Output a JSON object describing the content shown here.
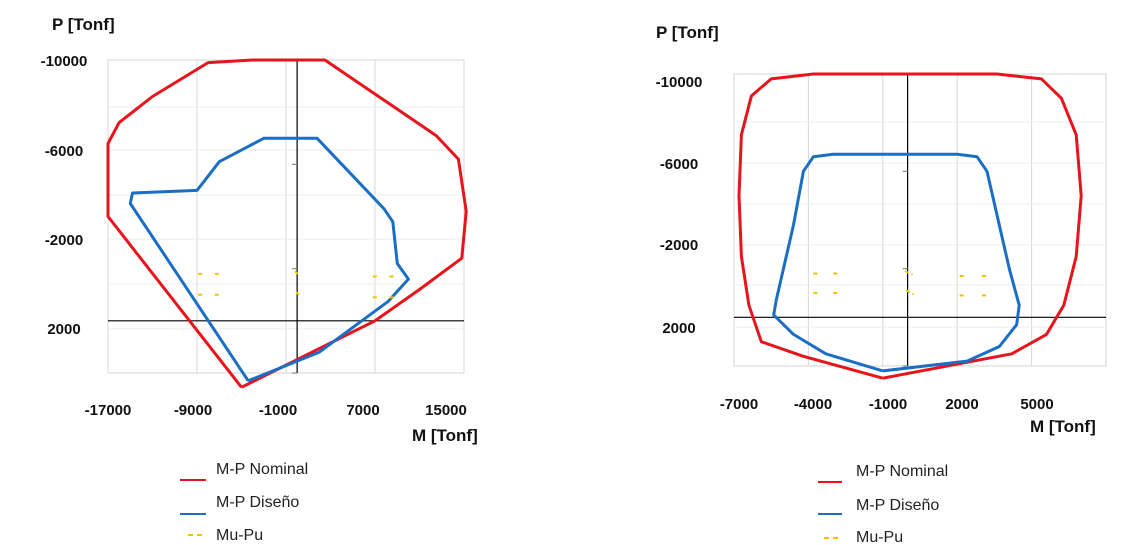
{
  "chart_data": [
    {
      "type": "line",
      "ylabel": "P [Tonf]",
      "xlabel": "M [Tonf]",
      "y_inverted": true,
      "grid": true,
      "legend_placement": "bottom",
      "xlim": [
        -17000,
        15000
      ],
      "ylim": [
        -10000,
        2000
      ],
      "x_ticks": [
        -17000,
        -9000,
        -1000,
        7000,
        15000
      ],
      "y_ticks": [
        -10000,
        -6000,
        -2000,
        2000
      ],
      "series": [
        {
          "name": "M-P Nominal",
          "color": "#e8141b",
          "style": "solid",
          "points": [
            [
              -5000,
              2550
            ],
            [
              -17000,
              -4000
            ],
            [
              -17000,
              -6800
            ],
            [
              -16000,
              -7600
            ],
            [
              -13000,
              -8600
            ],
            [
              -8000,
              -9900
            ],
            [
              -4000,
              -10000
            ],
            [
              2500,
              -10000
            ],
            [
              12500,
              -7100
            ],
            [
              14500,
              -6200
            ],
            [
              15200,
              -4200
            ],
            [
              14800,
              -2400
            ],
            [
              11000,
              -1200
            ],
            [
              7000,
              0
            ],
            [
              -5000,
              2550
            ]
          ]
        },
        {
          "name": "M-P Diseño",
          "color": "#1a6fc4",
          "style": "solid",
          "points": [
            [
              -4400,
              2300
            ],
            [
              -15000,
              -4500
            ],
            [
              -14800,
              -4900
            ],
            [
              -9000,
              -5000
            ],
            [
              -7000,
              -6100
            ],
            [
              -3000,
              -7000
            ],
            [
              1800,
              -7000
            ],
            [
              7800,
              -4300
            ],
            [
              8600,
              -3800
            ],
            [
              9000,
              -2200
            ],
            [
              10000,
              -1600
            ],
            [
              8200,
              -750
            ],
            [
              2000,
              1200
            ],
            [
              -4400,
              2300
            ]
          ]
        },
        {
          "name": "Mu-Pu",
          "color": "#f2c200",
          "style": "dashed",
          "segments": [
            [
              [
                -8900,
                -1800
              ],
              [
                -8300,
                -1800
              ]
            ],
            [
              [
                -7400,
                -1800
              ],
              [
                -6800,
                -1800
              ]
            ],
            [
              [
                -8900,
                -1000
              ],
              [
                -8300,
                -1000
              ]
            ],
            [
              [
                -7400,
                -1000
              ],
              [
                -6800,
                -1000
              ]
            ],
            [
              [
                6800,
                -1700
              ],
              [
                7400,
                -1700
              ]
            ],
            [
              [
                8300,
                -1700
              ],
              [
                8900,
                -1700
              ]
            ],
            [
              [
                6800,
                -900
              ],
              [
                7400,
                -900
              ]
            ],
            [
              [
                8300,
                -900
              ],
              [
                8900,
                -900
              ]
            ],
            [
              [
                -200,
                -1900
              ],
              [
                200,
                -1750
              ]
            ],
            [
              [
                -100,
                -1100
              ],
              [
                300,
                -950
              ]
            ]
          ]
        }
      ]
    },
    {
      "type": "line",
      "ylabel": "P [Tonf]",
      "xlabel": "M [Tonf]",
      "y_inverted": true,
      "grid": true,
      "legend_placement": "bottom",
      "xlim": [
        -7000,
        8000
      ],
      "ylim": [
        -10000,
        2000
      ],
      "x_ticks": [
        -7000,
        -4000,
        -1000,
        2000,
        5000
      ],
      "y_ticks": [
        -10000,
        -6000,
        -2000,
        2000
      ],
      "series": [
        {
          "name": "M-P Nominal",
          "color": "#e8141b",
          "style": "solid",
          "points": [
            [
              -1000,
              2500
            ],
            [
              -4200,
              1600
            ],
            [
              -5900,
              1000
            ],
            [
              -6400,
              -500
            ],
            [
              -6700,
              -2500
            ],
            [
              -6800,
              -5000
            ],
            [
              -6700,
              -7500
            ],
            [
              -6300,
              -9100
            ],
            [
              -5500,
              -9800
            ],
            [
              -3800,
              -10000
            ],
            [
              2000,
              -10000
            ],
            [
              3600,
              -10000
            ],
            [
              5400,
              -9800
            ],
            [
              6200,
              -9000
            ],
            [
              6800,
              -7500
            ],
            [
              7000,
              -5000
            ],
            [
              6800,
              -2500
            ],
            [
              6300,
              -500
            ],
            [
              5600,
              700
            ],
            [
              4200,
              1500
            ],
            [
              -1000,
              2500
            ]
          ]
        },
        {
          "name": "M-P Diseño",
          "color": "#1a6fc4",
          "style": "solid",
          "points": [
            [
              -1000,
              2200
            ],
            [
              -3300,
              1500
            ],
            [
              -4600,
              700
            ],
            [
              -5400,
              -100
            ],
            [
              -5300,
              -700
            ],
            [
              -4600,
              -3800
            ],
            [
              -4200,
              -6000
            ],
            [
              -3800,
              -6600
            ],
            [
              -3000,
              -6700
            ],
            [
              2000,
              -6700
            ],
            [
              2800,
              -6600
            ],
            [
              3200,
              -6000
            ],
            [
              4100,
              -2000
            ],
            [
              4500,
              -500
            ],
            [
              4400,
              300
            ],
            [
              3700,
              1200
            ],
            [
              2400,
              1800
            ],
            [
              -1000,
              2200
            ]
          ]
        },
        {
          "name": "Mu-Pu",
          "color": "#f2c200",
          "style": "dashed",
          "segments": [
            [
              [
                -3800,
                -1800
              ],
              [
                -3600,
                -1800
              ]
            ],
            [
              [
                -3000,
                -1800
              ],
              [
                -2800,
                -1800
              ]
            ],
            [
              [
                -3800,
                -1000
              ],
              [
                -3600,
                -1000
              ]
            ],
            [
              [
                -3000,
                -1000
              ],
              [
                -2800,
                -1000
              ]
            ],
            [
              [
                2100,
                -1700
              ],
              [
                2300,
                -1700
              ]
            ],
            [
              [
                3000,
                -1700
              ],
              [
                3200,
                -1700
              ]
            ],
            [
              [
                2100,
                -900
              ],
              [
                2300,
                -900
              ]
            ],
            [
              [
                3000,
                -900
              ],
              [
                3200,
                -900
              ]
            ],
            [
              [
                -100,
                -1900
              ],
              [
                200,
                -1750
              ]
            ],
            [
              [
                -50,
                -1100
              ],
              [
                250,
                -950
              ]
            ]
          ]
        }
      ]
    }
  ],
  "left": {
    "y_title": "P [Tonf]",
    "x_title": "M [Tonf]",
    "y_tick_labels": [
      "-10000",
      "-6000",
      "-2000",
      "2000"
    ],
    "x_tick_labels": [
      "-17000",
      "-9000",
      "-1000",
      "7000",
      "15000"
    ],
    "legend": [
      "M-P Nominal",
      "M-P Diseño",
      "Mu-Pu"
    ]
  },
  "right": {
    "y_title": "P [Tonf]",
    "x_title": "M [Tonf]",
    "y_tick_labels": [
      "-10000",
      "-6000",
      "-2000",
      "2000"
    ],
    "x_tick_labels": [
      "-7000",
      "-4000",
      "-1000",
      "2000",
      "5000"
    ],
    "legend": [
      "M-P Nominal",
      "M-P Diseño",
      "Mu-Pu"
    ]
  }
}
